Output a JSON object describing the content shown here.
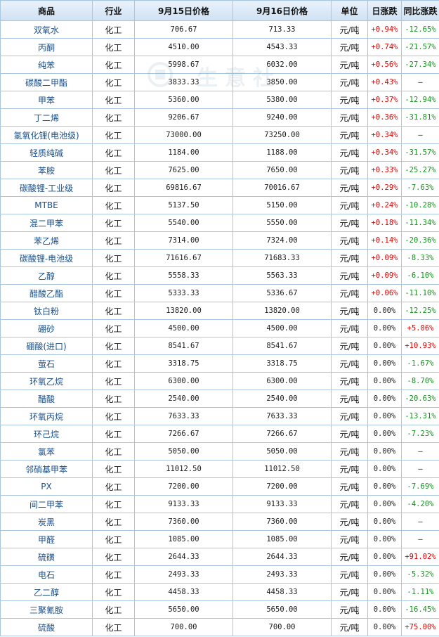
{
  "headers": [
    "商品",
    "行业",
    "9月15日价格",
    "9月16日价格",
    "单位",
    "日涨跌",
    "同比涨跌"
  ],
  "watermark": "生意社",
  "colors": {
    "header_bg": "#d6e6f5",
    "border": "#a9c6e0",
    "name": "#1a4f8b",
    "up": "#e00000",
    "down": "#14941c"
  },
  "rows": [
    {
      "name": "双氧水",
      "industry": "化工",
      "p1": "706.67",
      "p2": "713.33",
      "unit": "元/吨",
      "day": "+0.94%",
      "yoy": "-12.65%"
    },
    {
      "name": "丙酮",
      "industry": "化工",
      "p1": "4510.00",
      "p2": "4543.33",
      "unit": "元/吨",
      "day": "+0.74%",
      "yoy": "-21.57%"
    },
    {
      "name": "纯苯",
      "industry": "化工",
      "p1": "5998.67",
      "p2": "6032.00",
      "unit": "元/吨",
      "day": "+0.56%",
      "yoy": "-27.34%"
    },
    {
      "name": "碳酸二甲酯",
      "industry": "化工",
      "p1": "3833.33",
      "p2": "3850.00",
      "unit": "元/吨",
      "day": "+0.43%",
      "yoy": "—"
    },
    {
      "name": "甲苯",
      "industry": "化工",
      "p1": "5360.00",
      "p2": "5380.00",
      "unit": "元/吨",
      "day": "+0.37%",
      "yoy": "-12.94%"
    },
    {
      "name": "丁二烯",
      "industry": "化工",
      "p1": "9206.67",
      "p2": "9240.00",
      "unit": "元/吨",
      "day": "+0.36%",
      "yoy": "-31.81%"
    },
    {
      "name": "氢氧化锂(电池级)",
      "industry": "化工",
      "p1": "73000.00",
      "p2": "73250.00",
      "unit": "元/吨",
      "day": "+0.34%",
      "yoy": "—"
    },
    {
      "name": "轻质纯碱",
      "industry": "化工",
      "p1": "1184.00",
      "p2": "1188.00",
      "unit": "元/吨",
      "day": "+0.34%",
      "yoy": "-31.57%"
    },
    {
      "name": "苯胺",
      "industry": "化工",
      "p1": "7625.00",
      "p2": "7650.00",
      "unit": "元/吨",
      "day": "+0.33%",
      "yoy": "-25.27%"
    },
    {
      "name": "碳酸锂-工业级",
      "industry": "化工",
      "p1": "69816.67",
      "p2": "70016.67",
      "unit": "元/吨",
      "day": "+0.29%",
      "yoy": "-7.63%"
    },
    {
      "name": "MTBE",
      "industry": "化工",
      "p1": "5137.50",
      "p2": "5150.00",
      "unit": "元/吨",
      "day": "+0.24%",
      "yoy": "-10.28%"
    },
    {
      "name": "混二甲苯",
      "industry": "化工",
      "p1": "5540.00",
      "p2": "5550.00",
      "unit": "元/吨",
      "day": "+0.18%",
      "yoy": "-11.34%"
    },
    {
      "name": "苯乙烯",
      "industry": "化工",
      "p1": "7314.00",
      "p2": "7324.00",
      "unit": "元/吨",
      "day": "+0.14%",
      "yoy": "-20.36%"
    },
    {
      "name": "碳酸锂-电池级",
      "industry": "化工",
      "p1": "71616.67",
      "p2": "71683.33",
      "unit": "元/吨",
      "day": "+0.09%",
      "yoy": "-8.33%"
    },
    {
      "name": "乙醇",
      "industry": "化工",
      "p1": "5558.33",
      "p2": "5563.33",
      "unit": "元/吨",
      "day": "+0.09%",
      "yoy": "-6.10%"
    },
    {
      "name": "醋酸乙酯",
      "industry": "化工",
      "p1": "5333.33",
      "p2": "5336.67",
      "unit": "元/吨",
      "day": "+0.06%",
      "yoy": "-11.10%"
    },
    {
      "name": "钛白粉",
      "industry": "化工",
      "p1": "13820.00",
      "p2": "13820.00",
      "unit": "元/吨",
      "day": "0.00%",
      "yoy": "-12.25%"
    },
    {
      "name": "硼砂",
      "industry": "化工",
      "p1": "4500.00",
      "p2": "4500.00",
      "unit": "元/吨",
      "day": "0.00%",
      "yoy": "+5.06%"
    },
    {
      "name": "硼酸(进口)",
      "industry": "化工",
      "p1": "8541.67",
      "p2": "8541.67",
      "unit": "元/吨",
      "day": "0.00%",
      "yoy": "+10.93%"
    },
    {
      "name": "萤石",
      "industry": "化工",
      "p1": "3318.75",
      "p2": "3318.75",
      "unit": "元/吨",
      "day": "0.00%",
      "yoy": "-1.67%"
    },
    {
      "name": "环氧乙烷",
      "industry": "化工",
      "p1": "6300.00",
      "p2": "6300.00",
      "unit": "元/吨",
      "day": "0.00%",
      "yoy": "-8.70%"
    },
    {
      "name": "醋酸",
      "industry": "化工",
      "p1": "2540.00",
      "p2": "2540.00",
      "unit": "元/吨",
      "day": "0.00%",
      "yoy": "-20.63%"
    },
    {
      "name": "环氧丙烷",
      "industry": "化工",
      "p1": "7633.33",
      "p2": "7633.33",
      "unit": "元/吨",
      "day": "0.00%",
      "yoy": "-13.31%"
    },
    {
      "name": "环己烷",
      "industry": "化工",
      "p1": "7266.67",
      "p2": "7266.67",
      "unit": "元/吨",
      "day": "0.00%",
      "yoy": "-7.23%"
    },
    {
      "name": "氯苯",
      "industry": "化工",
      "p1": "5050.00",
      "p2": "5050.00",
      "unit": "元/吨",
      "day": "0.00%",
      "yoy": "—"
    },
    {
      "name": "邻硝基甲苯",
      "industry": "化工",
      "p1": "11012.50",
      "p2": "11012.50",
      "unit": "元/吨",
      "day": "0.00%",
      "yoy": "—"
    },
    {
      "name": "PX",
      "industry": "化工",
      "p1": "7200.00",
      "p2": "7200.00",
      "unit": "元/吨",
      "day": "0.00%",
      "yoy": "-7.69%"
    },
    {
      "name": "间二甲苯",
      "industry": "化工",
      "p1": "9133.33",
      "p2": "9133.33",
      "unit": "元/吨",
      "day": "0.00%",
      "yoy": "-4.20%"
    },
    {
      "name": "炭黑",
      "industry": "化工",
      "p1": "7360.00",
      "p2": "7360.00",
      "unit": "元/吨",
      "day": "0.00%",
      "yoy": "—"
    },
    {
      "name": "甲醛",
      "industry": "化工",
      "p1": "1085.00",
      "p2": "1085.00",
      "unit": "元/吨",
      "day": "0.00%",
      "yoy": "—"
    },
    {
      "name": "硫磺",
      "industry": "化工",
      "p1": "2644.33",
      "p2": "2644.33",
      "unit": "元/吨",
      "day": "0.00%",
      "yoy": "+91.02%"
    },
    {
      "name": "电石",
      "industry": "化工",
      "p1": "2493.33",
      "p2": "2493.33",
      "unit": "元/吨",
      "day": "0.00%",
      "yoy": "-5.32%"
    },
    {
      "name": "乙二醇",
      "industry": "化工",
      "p1": "4458.33",
      "p2": "4458.33",
      "unit": "元/吨",
      "day": "0.00%",
      "yoy": "-1.11%"
    },
    {
      "name": "三聚氰胺",
      "industry": "化工",
      "p1": "5650.00",
      "p2": "5650.00",
      "unit": "元/吨",
      "day": "0.00%",
      "yoy": "-16.45%"
    },
    {
      "name": "硫酸",
      "industry": "化工",
      "p1": "700.00",
      "p2": "700.00",
      "unit": "元/吨",
      "day": "0.00%",
      "yoy": "+75.00%"
    }
  ]
}
